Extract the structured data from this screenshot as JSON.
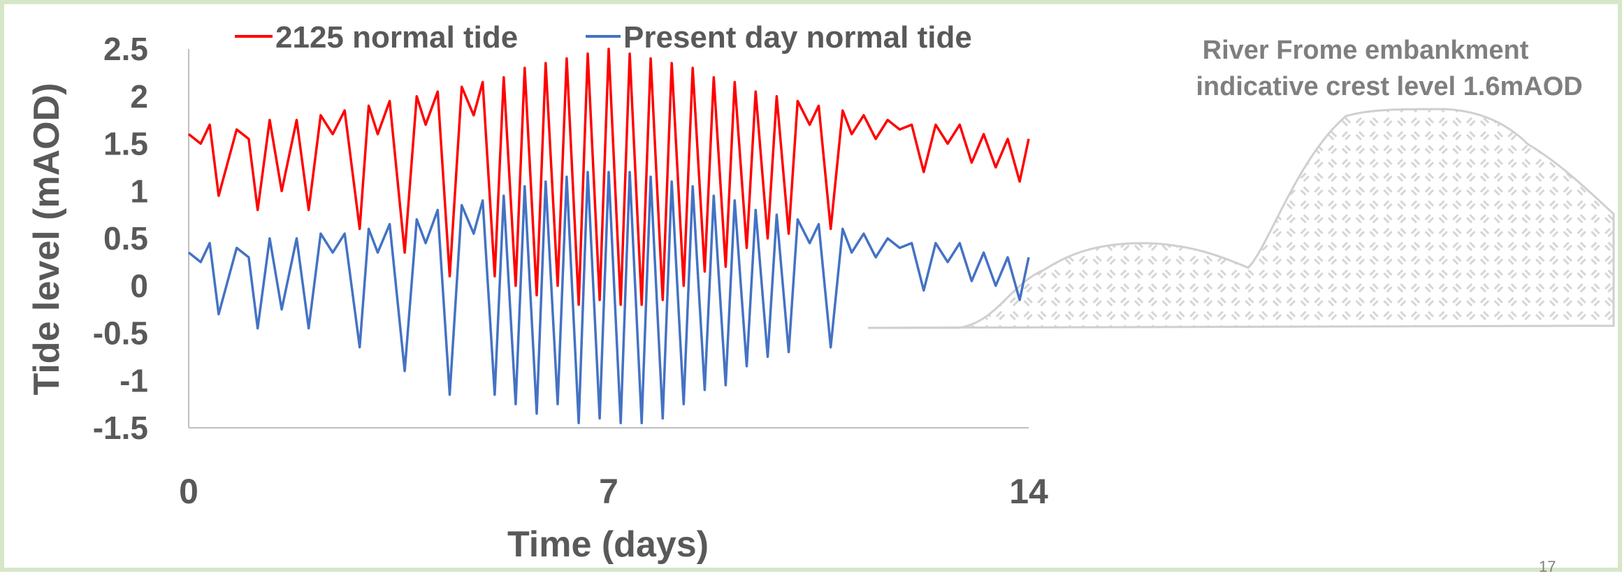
{
  "chart_data": {
    "type": "line",
    "title": "",
    "xlabel": "Time (days)",
    "ylabel": "Tide level (mAOD)",
    "xlim": [
      0,
      14
    ],
    "ylim": [
      -1.5,
      2.5
    ],
    "x_ticks": [
      "0",
      "7",
      "14"
    ],
    "y_ticks": [
      "2.5",
      "2",
      "1.5",
      "1",
      "0.5",
      "0",
      "-0.5",
      "-1",
      "-1.5"
    ],
    "grid": false,
    "legend_position": "top",
    "series": [
      {
        "name": "2125 normal tide",
        "color": "#ff0000",
        "x": [
          0.0,
          0.2,
          0.35,
          0.5,
          0.8,
          1.0,
          1.15,
          1.35,
          1.55,
          1.8,
          2.0,
          2.2,
          2.4,
          2.6,
          2.85,
          3.0,
          3.15,
          3.35,
          3.6,
          3.8,
          3.95,
          4.15,
          4.35,
          4.55,
          4.75,
          4.9,
          5.1,
          5.25,
          5.45,
          5.6,
          5.8,
          5.95,
          6.15,
          6.3,
          6.5,
          6.65,
          6.85,
          7.0,
          7.2,
          7.35,
          7.55,
          7.7,
          7.9,
          8.05,
          8.25,
          8.4,
          8.6,
          8.75,
          8.95,
          9.1,
          9.3,
          9.45,
          9.65,
          9.8,
          10.0,
          10.15,
          10.35,
          10.5,
          10.7,
          10.9,
          11.05,
          11.25,
          11.45,
          11.65,
          11.85,
          12.05,
          12.25,
          12.45,
          12.65,
          12.85,
          13.05,
          13.25,
          13.45,
          13.65,
          13.85,
          14.0
        ],
        "values": [
          1.6,
          1.5,
          1.7,
          0.95,
          1.65,
          1.55,
          0.8,
          1.75,
          1.0,
          1.75,
          0.8,
          1.8,
          1.6,
          1.85,
          0.6,
          1.9,
          1.6,
          1.95,
          0.35,
          2.0,
          1.7,
          2.05,
          0.1,
          2.1,
          1.8,
          2.15,
          0.1,
          2.2,
          0.0,
          2.3,
          -0.1,
          2.35,
          0.0,
          2.4,
          -0.2,
          2.45,
          -0.15,
          2.5,
          -0.2,
          2.45,
          -0.2,
          2.4,
          -0.15,
          2.35,
          0.0,
          2.3,
          0.15,
          2.2,
          0.2,
          2.15,
          0.4,
          2.05,
          0.5,
          2.0,
          0.55,
          1.95,
          1.7,
          1.9,
          0.6,
          1.85,
          1.6,
          1.8,
          1.55,
          1.75,
          1.65,
          1.7,
          1.2,
          1.7,
          1.5,
          1.7,
          1.3,
          1.6,
          1.25,
          1.55,
          1.1,
          1.55
        ]
      },
      {
        "name": "Present day normal tide",
        "color": "#4472c4",
        "x": [
          0.0,
          0.2,
          0.35,
          0.5,
          0.8,
          1.0,
          1.15,
          1.35,
          1.55,
          1.8,
          2.0,
          2.2,
          2.4,
          2.6,
          2.85,
          3.0,
          3.15,
          3.35,
          3.6,
          3.8,
          3.95,
          4.15,
          4.35,
          4.55,
          4.75,
          4.9,
          5.1,
          5.25,
          5.45,
          5.6,
          5.8,
          5.95,
          6.15,
          6.3,
          6.5,
          6.65,
          6.85,
          7.0,
          7.2,
          7.35,
          7.55,
          7.7,
          7.9,
          8.05,
          8.25,
          8.4,
          8.6,
          8.75,
          8.95,
          9.1,
          9.3,
          9.45,
          9.65,
          9.8,
          10.0,
          10.15,
          10.35,
          10.5,
          10.7,
          10.9,
          11.05,
          11.25,
          11.45,
          11.65,
          11.85,
          12.05,
          12.25,
          12.45,
          12.65,
          12.85,
          13.05,
          13.25,
          13.45,
          13.65,
          13.85,
          14.0
        ],
        "values": [
          0.35,
          0.25,
          0.45,
          -0.3,
          0.4,
          0.3,
          -0.45,
          0.5,
          -0.25,
          0.5,
          -0.45,
          0.55,
          0.35,
          0.55,
          -0.65,
          0.6,
          0.35,
          0.65,
          -0.9,
          0.7,
          0.45,
          0.8,
          -1.15,
          0.85,
          0.55,
          0.9,
          -1.15,
          0.95,
          -1.25,
          1.05,
          -1.35,
          1.1,
          -1.25,
          1.15,
          -1.45,
          1.2,
          -1.4,
          1.2,
          -1.45,
          1.2,
          -1.45,
          1.15,
          -1.4,
          1.1,
          -1.25,
          1.05,
          -1.1,
          0.95,
          -1.05,
          0.9,
          -0.85,
          0.8,
          -0.75,
          0.75,
          -0.7,
          0.7,
          0.45,
          0.65,
          -0.65,
          0.6,
          0.35,
          0.55,
          0.3,
          0.5,
          0.4,
          0.45,
          -0.05,
          0.45,
          0.25,
          0.45,
          0.05,
          0.35,
          0.0,
          0.3,
          -0.15,
          0.3
        ]
      }
    ]
  },
  "annotation": {
    "line1": "River Frome embankment",
    "line2": "indicative crest level 1.6mAOD"
  },
  "slide_number": "17"
}
